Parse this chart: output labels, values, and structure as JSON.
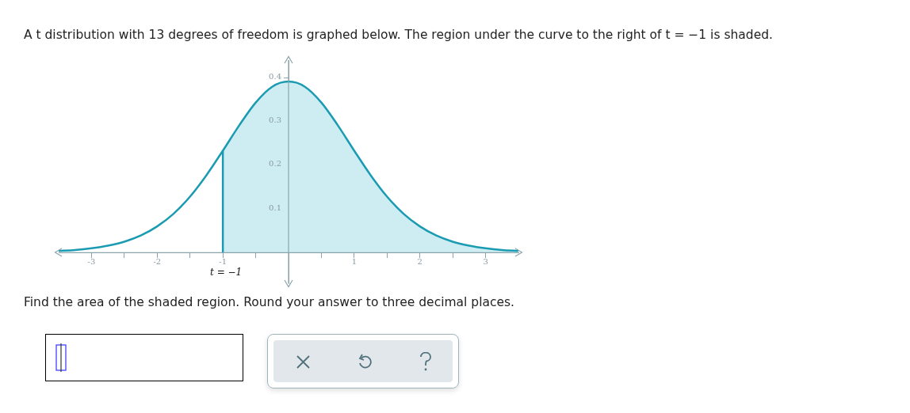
{
  "chart_data": {
    "type": "line",
    "title": "A t distribution with 13 degrees of freedom is graphed below. The region under the curve to the right of t = −1 is shaded.",
    "annotations": [
      "Find the area of the shaded region. Round your answer to three decimal places."
    ],
    "series": [
      {
        "type": "line",
        "color": "#1a9bb2",
        "x": [
          -3.5,
          -3.25,
          -3,
          -2.75,
          -2.5,
          -2.25,
          -2,
          -1.75,
          -1.5,
          -1.25,
          -1,
          -0.75,
          -0.5,
          -0.25,
          0,
          0.25,
          0.5,
          0.75,
          1,
          1.25,
          1.5,
          1.75,
          2,
          2.25,
          2.5,
          2.75,
          3,
          3.25,
          3.5
        ],
        "values": [
          0.004,
          0.006,
          0.01,
          0.016,
          0.025,
          0.039,
          0.06,
          0.089,
          0.128,
          0.177,
          0.233,
          0.291,
          0.343,
          0.379,
          0.391,
          0.379,
          0.343,
          0.291,
          0.233,
          0.177,
          0.128,
          0.089,
          0.06,
          0.039,
          0.025,
          0.016,
          0.01,
          0.006,
          0.004
        ]
      },
      {
        "type": "area",
        "color": "#cdedf2",
        "x": [
          -1,
          -0.75,
          -0.5,
          -0.25,
          0,
          0.25,
          0.5,
          0.75,
          1,
          1.25,
          1.5,
          1.75,
          2,
          2.25,
          2.5,
          2.75,
          3,
          3.25,
          3.5
        ],
        "values": [
          0.233,
          0.291,
          0.343,
          0.379,
          0.391,
          0.379,
          0.343,
          0.291,
          0.233,
          0.177,
          0.128,
          0.089,
          0.06,
          0.039,
          0.025,
          0.016,
          0.01,
          0.006,
          0.004
        ]
      }
    ],
    "ref_lines": [
      {
        "axis": "x",
        "value": -1,
        "label": "t = −1",
        "color": "#1a9bb2"
      }
    ],
    "xlim": [
      -3.5,
      3.5
    ],
    "xticks": [
      -3,
      {
        "value": -2.5,
        "label": null
      },
      -2,
      {
        "value": -1.5,
        "label": null
      },
      -1,
      {
        "value": -0.5,
        "label": null
      },
      {
        "value": 0,
        "label": null
      },
      {
        "value": 0.5,
        "label": null
      },
      1,
      {
        "value": 1.5,
        "label": null
      },
      2,
      {
        "value": 2.5,
        "label": null
      },
      3
    ],
    "ylim": [
      -0.07,
      0.44
    ],
    "yticks": [
      0.1,
      0.2,
      0.3,
      0.4
    ],
    "grid": false,
    "legend": false
  }
}
